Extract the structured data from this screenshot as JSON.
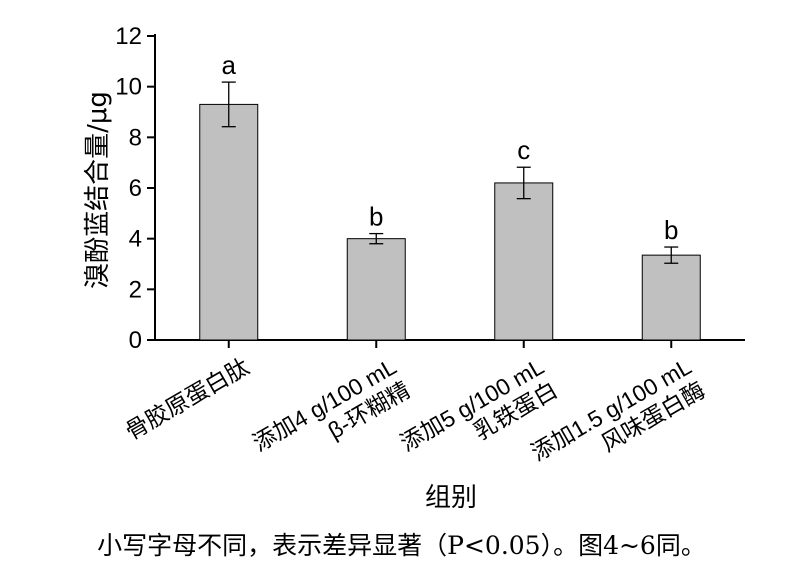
{
  "chart_data": {
    "type": "bar",
    "ylabel": "溴酚蓝结合量/μg",
    "xlabel": "组别",
    "ylim": [
      0,
      12
    ],
    "yticks": [
      0,
      2,
      4,
      6,
      8,
      10,
      12
    ],
    "categories": [
      [
        "骨胶原蛋白肽"
      ],
      [
        "添加4 g/100 mL",
        "β-环糊精"
      ],
      [
        "添加5 g/100 mL",
        "乳铁蛋白"
      ],
      [
        "添加1.5 g/100 mL",
        "风味蛋白酶"
      ]
    ],
    "values": [
      9.3,
      4.0,
      6.2,
      3.35
    ],
    "errors": [
      0.88,
      0.2,
      0.62,
      0.32
    ],
    "significance": [
      "a",
      "b",
      "c",
      "b"
    ],
    "bar_color": "#c0c0c0",
    "grid": false,
    "legend": "none"
  },
  "caption": "小写字母不同，表示差异显著（P<0.05）。图4~6同。"
}
